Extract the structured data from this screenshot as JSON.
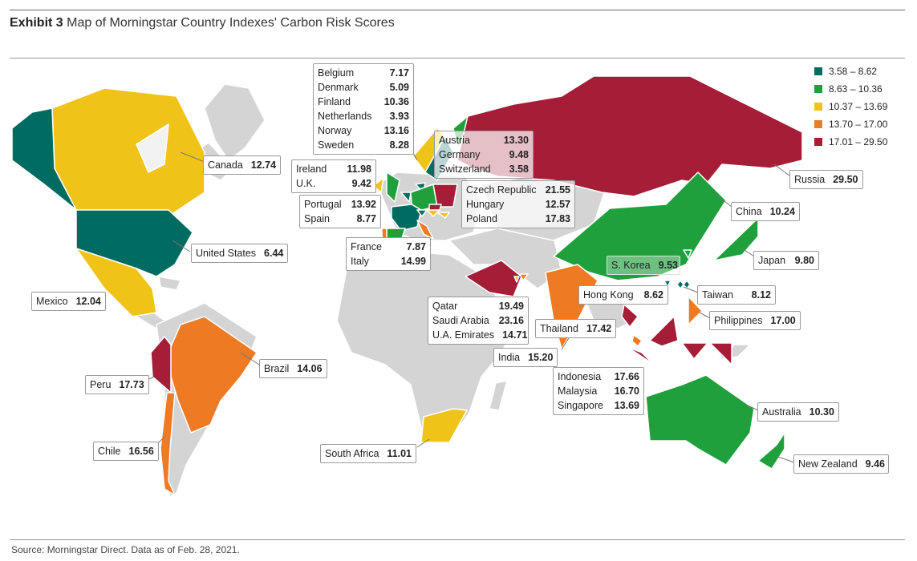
{
  "header": {
    "exhibit": "Exhibit 3",
    "title": "Map of Morningstar Country Indexes' Carbon Risk Scores"
  },
  "source": "Source: Morningstar Direct. Data as of Feb. 28, 2021.",
  "legend": [
    {
      "label": "3.58 – 8.62",
      "color": "#006B61"
    },
    {
      "label": "8.63 – 10.36",
      "color": "#1FA03C"
    },
    {
      "label": "10.37 – 13.69",
      "color": "#F0C319"
    },
    {
      "label": "13.70 – 17.00",
      "color": "#EE7A23"
    },
    {
      "label": "17.01 – 29.50",
      "color": "#A51D37"
    }
  ],
  "colors": {
    "land": "#D4D4D4",
    "border": "#ffffff"
  },
  "labels": {
    "nordic": [
      {
        "name": "Belgium",
        "value": "7.17"
      },
      {
        "name": "Denmark",
        "value": "5.09"
      },
      {
        "name": "Finland",
        "value": "10.36"
      },
      {
        "name": "Netherlands",
        "value": "3.93"
      },
      {
        "name": "Norway",
        "value": "13.16"
      },
      {
        "name": "Sweden",
        "value": "8.28"
      }
    ],
    "central": [
      {
        "name": "Austria",
        "value": "13.30"
      },
      {
        "name": "Germany",
        "value": "9.48"
      },
      {
        "name": "Switzerland",
        "value": "3.58"
      }
    ],
    "uk": [
      {
        "name": "Ireland",
        "value": "11.98"
      },
      {
        "name": "U.K.",
        "value": "9.42"
      }
    ],
    "iberia": [
      {
        "name": "Portugal",
        "value": "13.92"
      },
      {
        "name": "Spain",
        "value": "8.77"
      }
    ],
    "east_europe": [
      {
        "name": "Czech Republic",
        "value": "21.55"
      },
      {
        "name": "Hungary",
        "value": "12.57"
      },
      {
        "name": "Poland",
        "value": "17.83"
      }
    ],
    "france": [
      {
        "name": "France",
        "value": "7.87"
      },
      {
        "name": "Italy",
        "value": "14.99"
      }
    ],
    "gulf": [
      {
        "name": "Qatar",
        "value": "19.49"
      },
      {
        "name": "Saudi Arabia",
        "value": "23.16"
      },
      {
        "name": "U.A. Emirates",
        "value": "14.71"
      }
    ],
    "sea": [
      {
        "name": "Indonesia",
        "value": "17.66"
      },
      {
        "name": "Malaysia",
        "value": "16.70"
      },
      {
        "name": "Singapore",
        "value": "13.69"
      }
    ],
    "canada": {
      "name": "Canada",
      "value": "12.74"
    },
    "us": {
      "name": "United States",
      "value": "6.44"
    },
    "mexico": {
      "name": "Mexico",
      "value": "12.04"
    },
    "brazil": {
      "name": "Brazil",
      "value": "14.06"
    },
    "peru": {
      "name": "Peru",
      "value": "17.73"
    },
    "chile": {
      "name": "Chile",
      "value": "16.56"
    },
    "south_africa": {
      "name": "South Africa",
      "value": "11.01"
    },
    "russia": {
      "name": "Russia",
      "value": "29.50"
    },
    "china": {
      "name": "China",
      "value": "10.24"
    },
    "japan": {
      "name": "Japan",
      "value": "9.80"
    },
    "korea": {
      "name": "S. Korea",
      "value": "9.53"
    },
    "taiwan": {
      "name": "Taiwan",
      "value": "8.12"
    },
    "hong_kong": {
      "name": "Hong Kong",
      "value": "8.62"
    },
    "philippines": {
      "name": "Philippines",
      "value": "17.00"
    },
    "thailand": {
      "name": "Thailand",
      "value": "17.42"
    },
    "india": {
      "name": "India",
      "value": "15.20"
    },
    "australia": {
      "name": "Australia",
      "value": "10.30"
    },
    "new_zealand": {
      "name": "New Zealand",
      "value": "9.46"
    }
  }
}
